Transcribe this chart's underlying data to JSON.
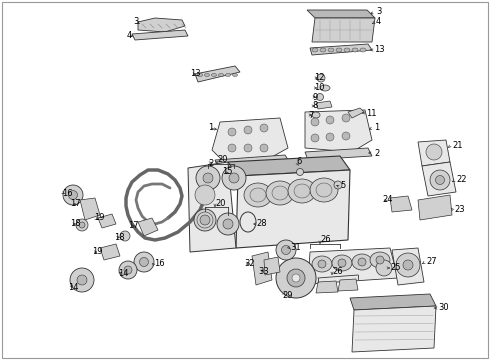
{
  "background_color": "#ffffff",
  "figsize": [
    4.9,
    3.6
  ],
  "dpi": 100,
  "border_color": "#aaaaaa",
  "line_color": "#333333",
  "fill_light": "#e8e8e8",
  "fill_mid": "#d0d0d0",
  "fill_dark": "#b8b8b8",
  "font_size": 6.0,
  "lw_part": 0.6,
  "lw_leader": 0.5
}
